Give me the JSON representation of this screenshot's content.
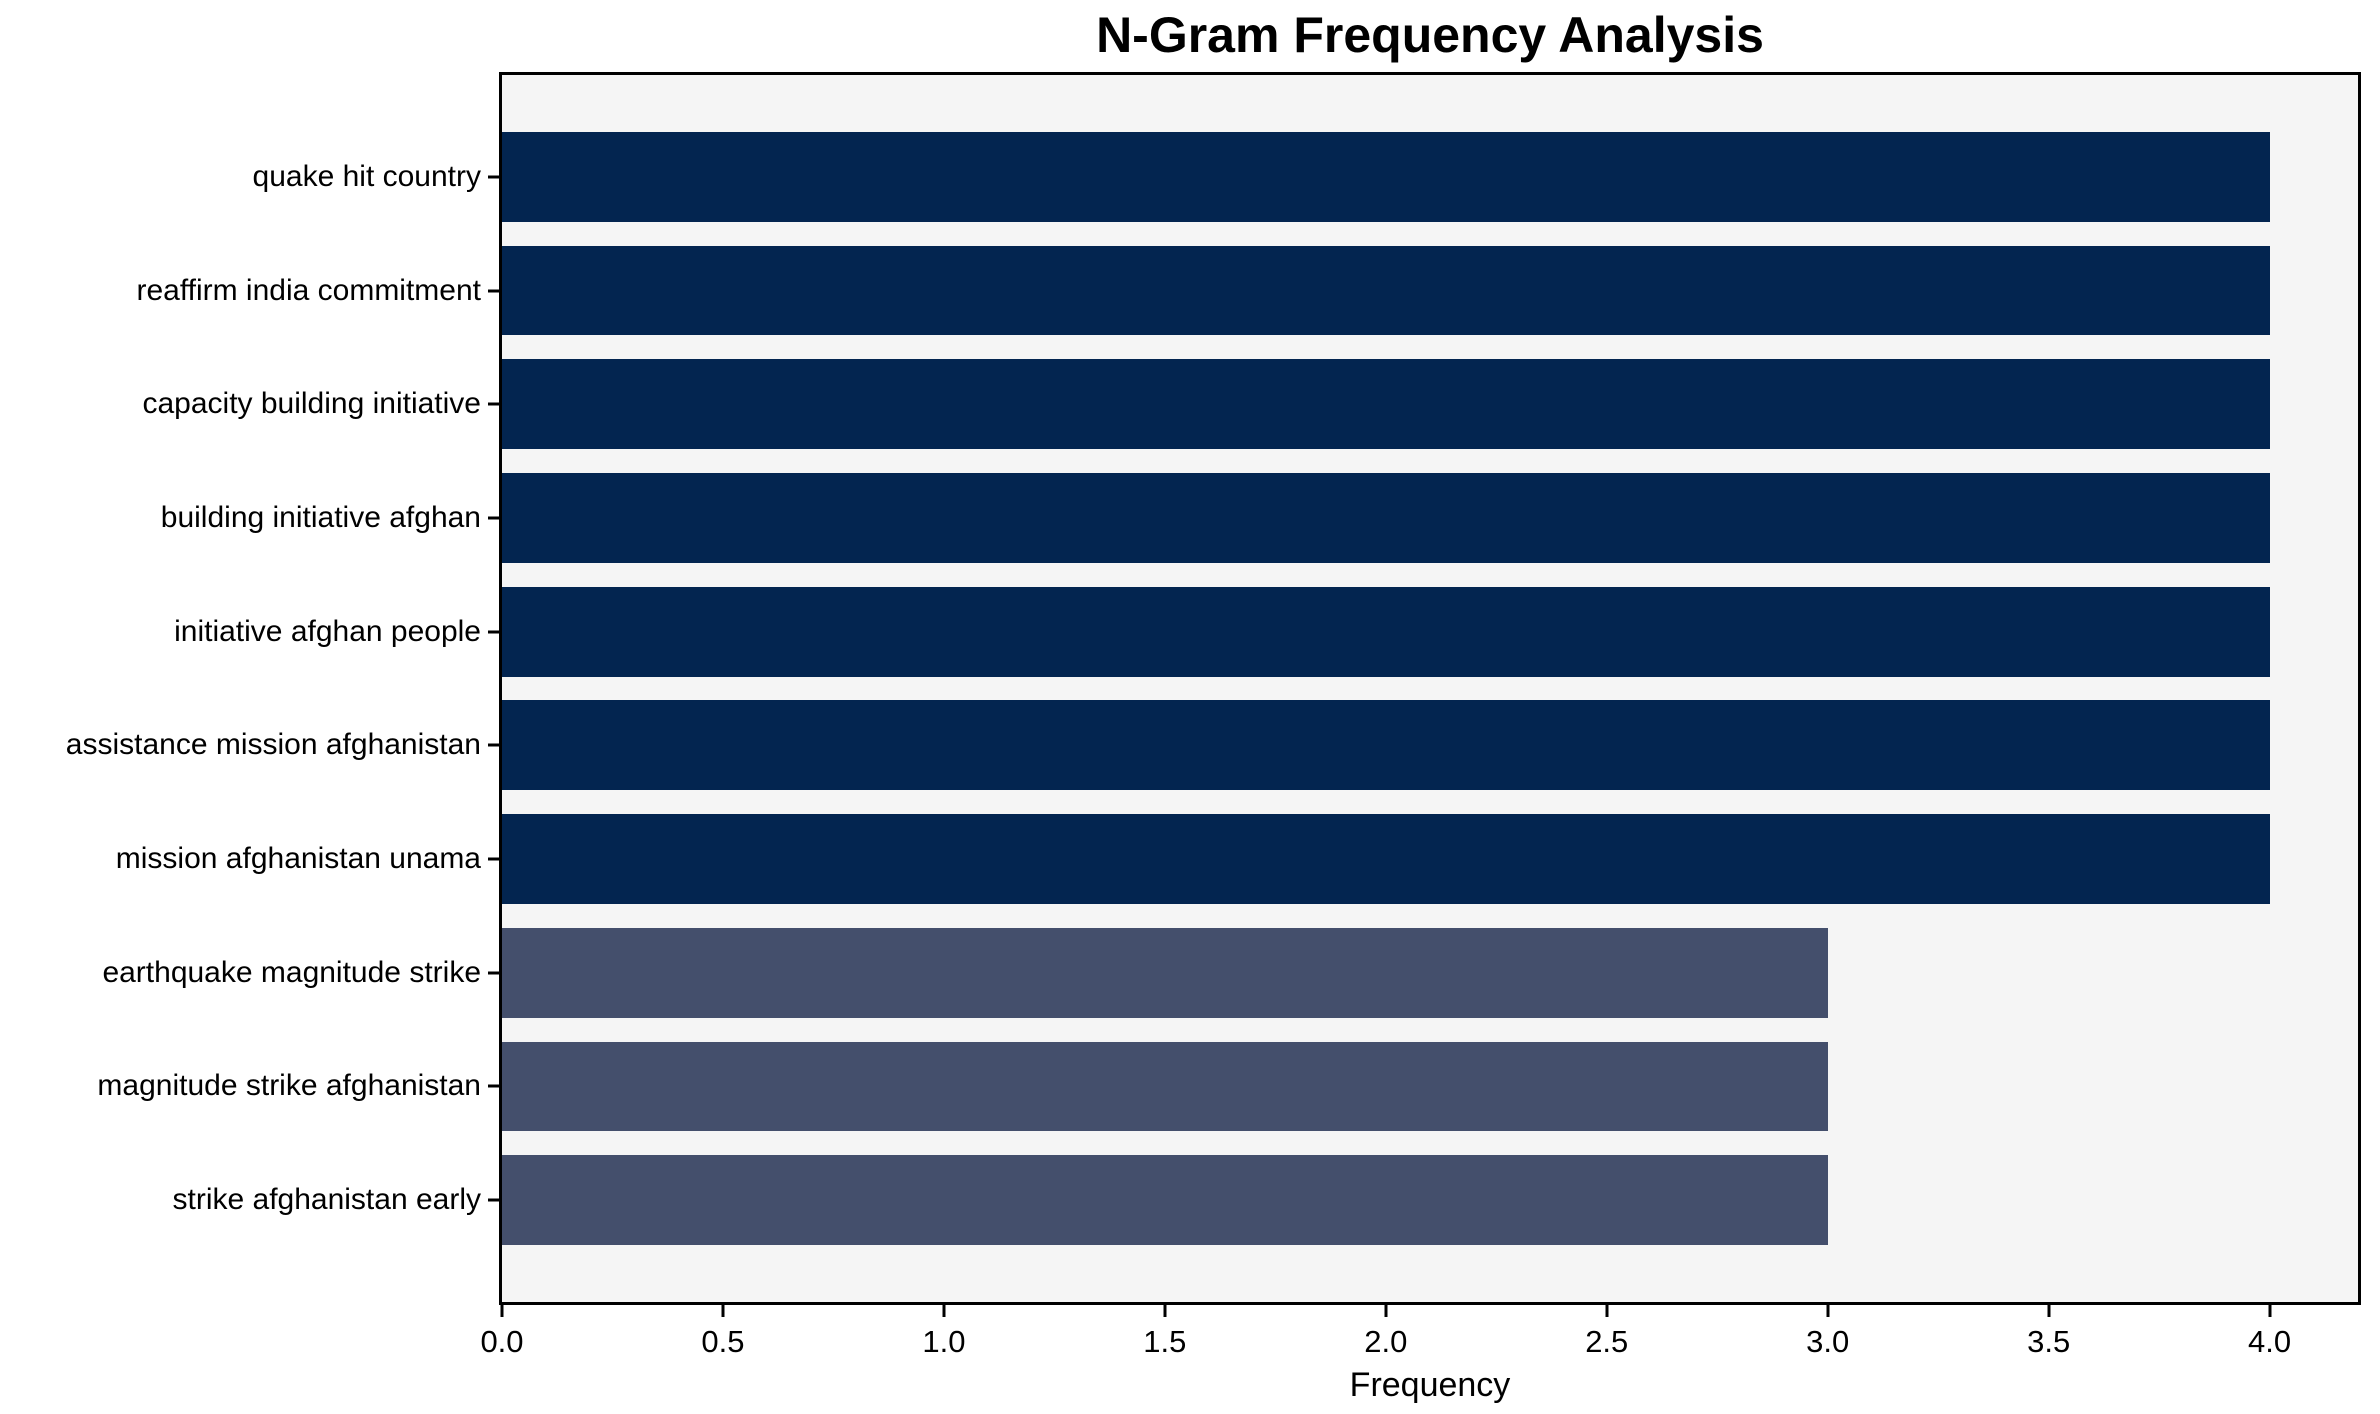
{
  "chart_data": {
    "type": "bar",
    "orientation": "horizontal",
    "title": "N-Gram Frequency Analysis",
    "xlabel": "Frequency",
    "ylabel": "",
    "categories": [
      "quake hit country",
      "reaffirm india commitment",
      "capacity building initiative",
      "building initiative afghan",
      "initiative afghan people",
      "assistance mission afghanistan",
      "mission afghanistan unama",
      "earthquake magnitude strike",
      "magnitude strike afghanistan",
      "strike afghanistan early"
    ],
    "values": [
      4,
      4,
      4,
      4,
      4,
      4,
      4,
      3,
      3,
      3
    ],
    "bar_colors": [
      "#032550",
      "#032550",
      "#032550",
      "#032550",
      "#032550",
      "#032550",
      "#032550",
      "#444f6c",
      "#444f6c",
      "#444f6c"
    ],
    "xlim": [
      0,
      4.2
    ],
    "xticks": [
      0.0,
      0.5,
      1.0,
      1.5,
      2.0,
      2.5,
      3.0,
      3.5,
      4.0
    ],
    "xtick_labels": [
      "0.0",
      "0.5",
      "1.0",
      "1.5",
      "2.0",
      "2.5",
      "3.0",
      "3.5",
      "4.0"
    ],
    "grid": false,
    "legend": null,
    "plot_background": "#f5f5f5",
    "figure_background": "#ffffff",
    "spine_color": "#000000"
  }
}
